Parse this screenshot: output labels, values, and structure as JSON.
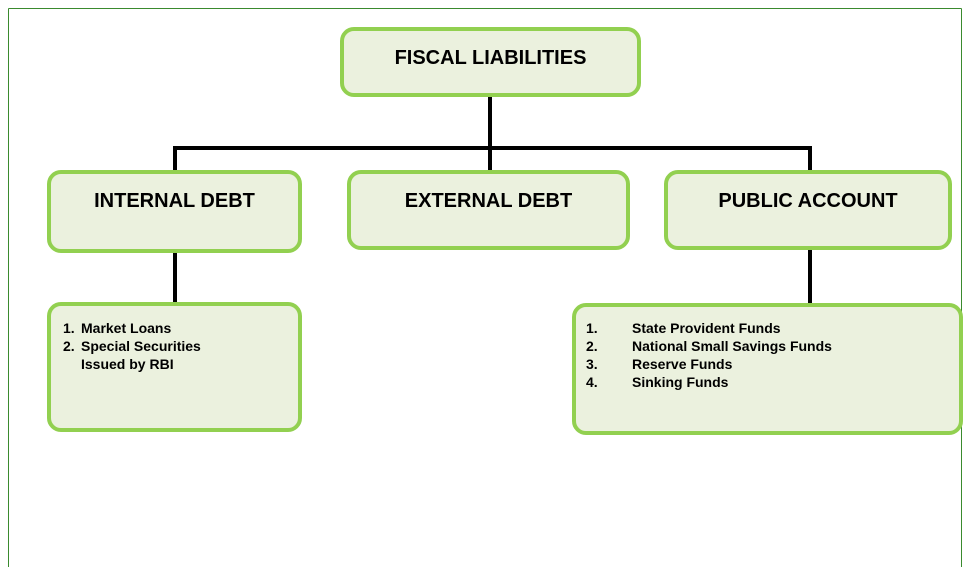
{
  "nodes": [
    {
      "label": "FISCAL LIABILITIES"
    },
    {
      "label": "INTERNAL DEBT"
    },
    {
      "label": "EXTERNAL DEBT"
    },
    {
      "label": "PUBLIC ACCOUNT"
    }
  ],
  "lists": [
    {
      "items": [
        {
          "number": "1.",
          "text": "Market Loans"
        },
        {
          "number": "2.",
          "text": "Special Securities Issued by RBI"
        }
      ]
    },
    {
      "items": [
        {
          "number": "1.",
          "text": "State Provident Funds"
        },
        {
          "number": "2.",
          "text": "National Small Savings Funds"
        },
        {
          "number": "3.",
          "text": "Reserve Funds"
        },
        {
          "number": "4.",
          "text": "Sinking Funds"
        }
      ]
    }
  ]
}
